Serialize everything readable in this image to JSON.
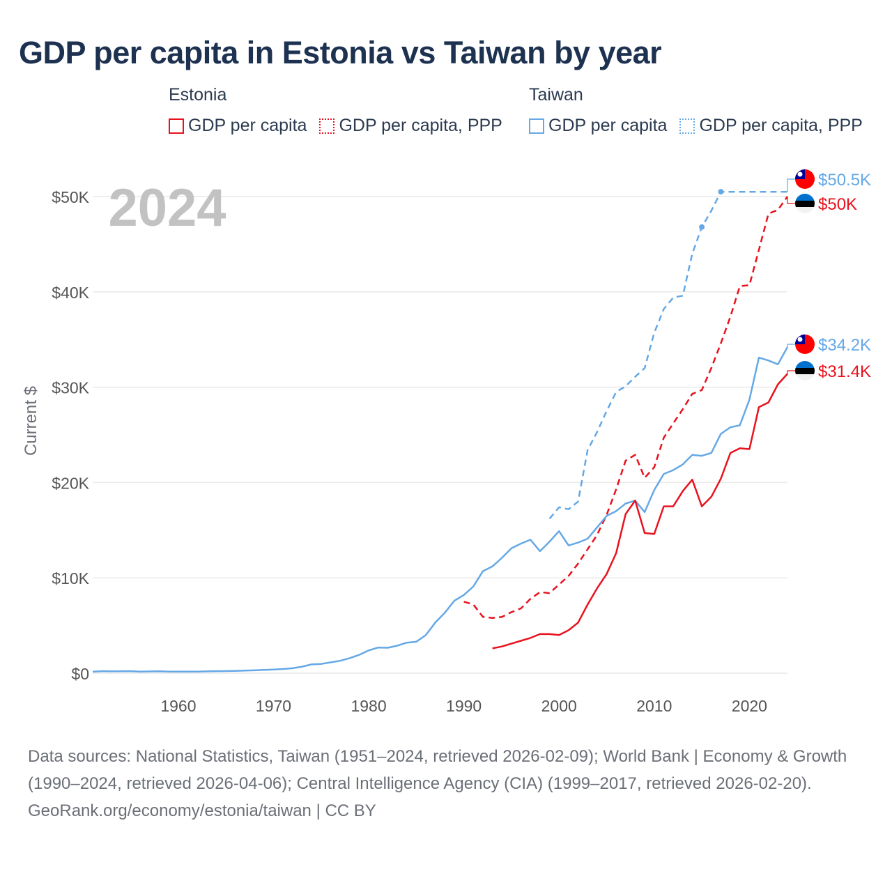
{
  "title": "GDP per capita in Estonia vs Taiwan by year",
  "legend": {
    "groups": [
      {
        "name": "Estonia",
        "items": [
          "GDP per capita",
          "GDP per capita, PPP"
        ]
      },
      {
        "name": "Taiwan",
        "items": [
          "GDP per capita",
          "GDP per capita, PPP"
        ]
      }
    ]
  },
  "colors": {
    "estonia": "#e8121e",
    "taiwan": "#65a8e6",
    "grid": "#e9e9e9",
    "axis_text": "#555555",
    "year_watermark": "#c2c2c2"
  },
  "year_label": "2024",
  "footer": {
    "sources": "Data sources: National Statistics, Taiwan (1951–2024, retrieved 2026-02-09); World Bank | Economy & Growth (1990–2024, retrieved 2026-04-06); Central Intelligence Agency (CIA) (1999–2017, retrieved 2026-02-20).",
    "credit": "GeoRank.org/economy/estonia/taiwan | CC BY"
  },
  "chart_data": {
    "type": "line",
    "title": "GDP per capita in Estonia vs Taiwan by year",
    "xlabel": "",
    "ylabel": "Current $",
    "xlim": [
      1951,
      2024
    ],
    "ylim": [
      0,
      50000
    ],
    "xticks": [
      1960,
      1970,
      1980,
      1990,
      2000,
      2010,
      2020
    ],
    "xtick_labels": [
      "1960",
      "1970",
      "1980",
      "1990",
      "2000",
      "2010",
      "2020"
    ],
    "yticks": [
      0,
      10000,
      20000,
      30000,
      40000,
      50000
    ],
    "ytick_labels": [
      "$0",
      "$10K",
      "$20K",
      "$30K",
      "$40K",
      "$50K"
    ],
    "series": [
      {
        "name": "Taiwan GDP per capita, PPP",
        "country": "Taiwan",
        "style": "dashed",
        "x": [
          1999,
          2000,
          2001,
          2002,
          2003,
          2004,
          2005,
          2006,
          2007,
          2008,
          2009,
          2010,
          2011,
          2012,
          2013,
          2014,
          2015,
          2016,
          2017,
          2024
        ],
        "y": [
          16200,
          17400,
          17200,
          18000,
          23400,
          25300,
          27500,
          29500,
          30100,
          31100,
          32000,
          35700,
          38200,
          39400,
          39600,
          44000,
          46800,
          48500,
          50500,
          50500
        ],
        "end_label": "$50.5K"
      },
      {
        "name": "Estonia GDP per capita, PPP",
        "country": "Estonia",
        "style": "dashed",
        "x": [
          1990,
          1991,
          1992,
          1993,
          1994,
          1995,
          1996,
          1997,
          1998,
          1999,
          2000,
          2001,
          2002,
          2003,
          2004,
          2005,
          2006,
          2007,
          2008,
          2009,
          2010,
          2011,
          2012,
          2013,
          2014,
          2015,
          2016,
          2017,
          2018,
          2019,
          2020,
          2021,
          2022,
          2023,
          2024
        ],
        "y": [
          7500,
          7200,
          5900,
          5800,
          5900,
          6400,
          6800,
          7800,
          8500,
          8400,
          9300,
          10200,
          11500,
          13000,
          14500,
          16600,
          19300,
          22300,
          22900,
          20500,
          21600,
          24700,
          26200,
          27700,
          29300,
          29700,
          32000,
          34600,
          37400,
          40600,
          40700,
          44400,
          48200,
          48600,
          50000
        ],
        "end_label": "$50K"
      },
      {
        "name": "Taiwan GDP per capita",
        "country": "Taiwan",
        "style": "solid",
        "x": [
          1951,
          1952,
          1953,
          1954,
          1955,
          1956,
          1957,
          1958,
          1959,
          1960,
          1961,
          1962,
          1963,
          1964,
          1965,
          1966,
          1967,
          1968,
          1969,
          1970,
          1971,
          1972,
          1973,
          1974,
          1975,
          1976,
          1977,
          1978,
          1979,
          1980,
          1981,
          1982,
          1983,
          1984,
          1985,
          1986,
          1987,
          1988,
          1989,
          1990,
          1991,
          1992,
          1993,
          1994,
          1995,
          1996,
          1997,
          1998,
          1999,
          2000,
          2001,
          2002,
          2003,
          2004,
          2005,
          2006,
          2007,
          2008,
          2009,
          2010,
          2011,
          2012,
          2013,
          2014,
          2015,
          2016,
          2017,
          2018,
          2019,
          2020,
          2021,
          2022,
          2023,
          2024
        ],
        "y": [
          150,
          210,
          190,
          200,
          210,
          170,
          180,
          200,
          160,
          160,
          160,
          170,
          190,
          210,
          220,
          240,
          270,
          300,
          340,
          390,
          440,
          520,
          690,
          920,
          970,
          1130,
          1300,
          1580,
          1920,
          2390,
          2690,
          2670,
          2880,
          3200,
          3300,
          3990,
          5320,
          6340,
          7600,
          8200,
          9100,
          10700,
          11200,
          12100,
          13100,
          13600,
          14000,
          12800,
          13800,
          14900,
          13400,
          13700,
          14100,
          15300,
          16500,
          17000,
          17800,
          18100,
          16900,
          19200,
          20900,
          21300,
          21900,
          22900,
          22800,
          23100,
          25100,
          25800,
          26000,
          28700,
          33100,
          32800,
          32400,
          34200
        ],
        "end_label": "$34.2K"
      },
      {
        "name": "Estonia GDP per capita",
        "country": "Estonia",
        "style": "solid",
        "x": [
          1993,
          1994,
          1995,
          1996,
          1997,
          1998,
          1999,
          2000,
          2001,
          2002,
          2003,
          2004,
          2005,
          2006,
          2007,
          2008,
          2009,
          2010,
          2011,
          2012,
          2013,
          2014,
          2015,
          2016,
          2017,
          2018,
          2019,
          2020,
          2021,
          2022,
          2023,
          2024
        ],
        "y": [
          2600,
          2800,
          3100,
          3400,
          3700,
          4100,
          4100,
          4000,
          4500,
          5300,
          7200,
          8900,
          10400,
          12600,
          16700,
          18100,
          14700,
          14600,
          17500,
          17500,
          19100,
          20300,
          17500,
          18500,
          20400,
          23100,
          23600,
          23500,
          27900,
          28400,
          30300,
          31400
        ],
        "end_label": "$31.4K"
      }
    ]
  }
}
